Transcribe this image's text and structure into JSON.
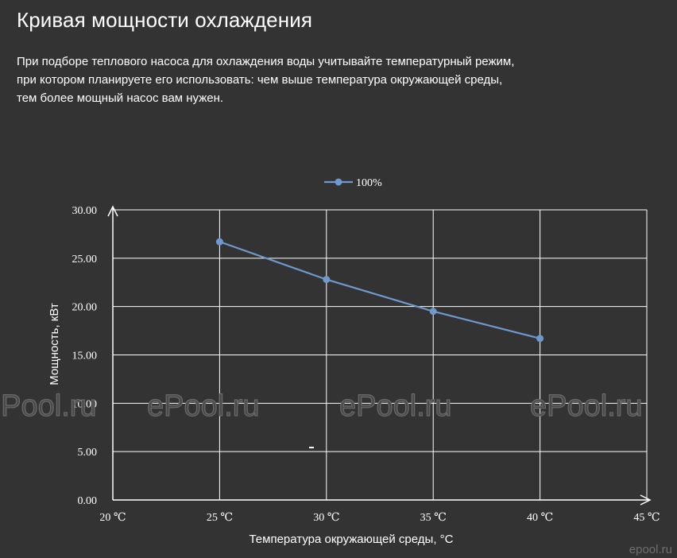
{
  "header": {
    "title": "Кривая мощности охлаждения",
    "description_lines": [
      "При подборе теплового насоса для охлаждения воды учитывайте температурный режим,",
      "при котором планируете его использовать: чем выше температура окружающей среды,",
      "тем более мощный насос вам нужен."
    ]
  },
  "watermarks": [
    "ePool.ru",
    "ePool.ru",
    "ePool.ru",
    "ePool.ru"
  ],
  "corner_watermark": "epool.ru",
  "colors": {
    "background": "#333333",
    "series": "#6f98cc",
    "grid": "#ffffff",
    "text": "#ffffff"
  },
  "chart_data": {
    "type": "line",
    "xlabel": "Температура окружающей среды, °С",
    "ylabel": "Мощность, кВт",
    "x_ticks": [
      "20 ℃",
      "25 ℃",
      "30 ℃",
      "35 ℃",
      "40 ℃",
      "45 ℃"
    ],
    "x_values": [
      20,
      25,
      30,
      35,
      40,
      45
    ],
    "xlim": [
      20,
      45
    ],
    "y_ticks": [
      "0.00",
      "5.00",
      "10.00",
      "15.00",
      "20.00",
      "25.00",
      "30.00"
    ],
    "ylim": [
      0,
      30
    ],
    "grid": true,
    "legend_position": "top-center",
    "series": [
      {
        "name": "100%",
        "x": [
          25,
          30,
          35,
          40
        ],
        "y": [
          26.7,
          22.8,
          19.5,
          16.7
        ]
      }
    ]
  }
}
